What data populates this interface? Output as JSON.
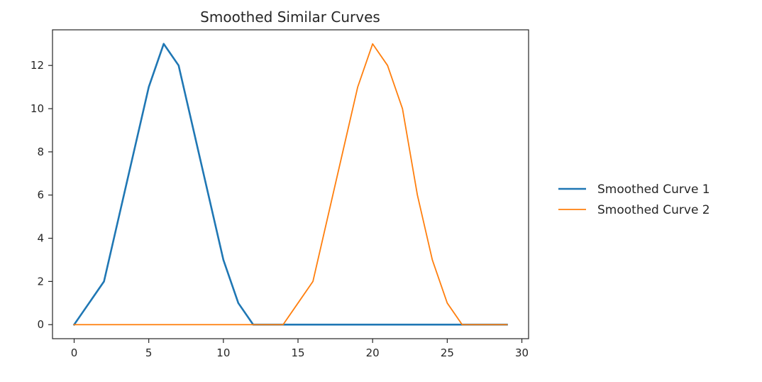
{
  "chart_data": {
    "type": "line",
    "title": "Smoothed Similar Curves",
    "xlabel": "",
    "ylabel": "",
    "xlim": [
      -1.45,
      30.45
    ],
    "ylim": [
      -0.65,
      13.65
    ],
    "xticks": [
      0,
      5,
      10,
      15,
      20,
      25,
      30
    ],
    "yticks": [
      0,
      2,
      4,
      6,
      8,
      10,
      12
    ],
    "grid": false,
    "legend_position": "outside-right",
    "series": [
      {
        "name": "Smoothed Curve 1",
        "color": "#1f77b4",
        "x": [
          0,
          1,
          2,
          3,
          4,
          5,
          6,
          7,
          8,
          9,
          10,
          11,
          12,
          13,
          14,
          15,
          16,
          17,
          18,
          19,
          20,
          21,
          22,
          23,
          24,
          25,
          26,
          27,
          28,
          29
        ],
        "values": [
          0,
          1,
          2,
          5,
          8,
          11,
          13,
          12,
          9,
          6,
          3,
          1,
          0,
          0,
          0,
          0,
          0,
          0,
          0,
          0,
          0,
          0,
          0,
          0,
          0,
          0,
          0,
          0,
          0,
          0
        ]
      },
      {
        "name": "Smoothed Curve 2",
        "color": "#ff7f0e",
        "x": [
          0,
          1,
          2,
          3,
          4,
          5,
          6,
          7,
          8,
          9,
          10,
          11,
          12,
          13,
          14,
          15,
          16,
          17,
          18,
          19,
          20,
          21,
          22,
          23,
          24,
          25,
          26,
          27,
          28,
          29
        ],
        "values": [
          0,
          0,
          0,
          0,
          0,
          0,
          0,
          0,
          0,
          0,
          0,
          0,
          0,
          0,
          0,
          1,
          2,
          5,
          8,
          11,
          13,
          12,
          10,
          6,
          3,
          1,
          0,
          0,
          0,
          0
        ]
      }
    ]
  }
}
